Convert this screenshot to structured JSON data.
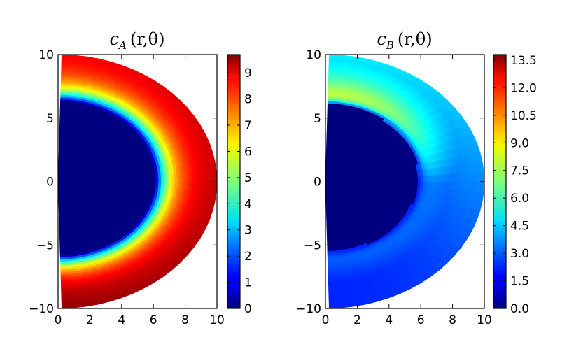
{
  "chart_data": [
    {
      "type": "heatmap",
      "title": "c_A (r,θ)",
      "title_parts": {
        "symbol": "c",
        "subscript": "A",
        "args": "(r,θ)"
      },
      "x_ticks": [
        "0",
        "2",
        "4",
        "6",
        "8",
        "10"
      ],
      "y_ticks": [
        "10",
        "5",
        "0",
        "−5",
        "−10"
      ],
      "xlim": [
        0,
        10
      ],
      "ylim": [
        -10,
        10
      ],
      "colorbar": {
        "colormap": "jet",
        "range": [
          0,
          9.7
        ],
        "ticks": [
          "0",
          "1",
          "2",
          "3",
          "4",
          "5",
          "6",
          "7",
          "8",
          "9"
        ],
        "tick_values": [
          0,
          1,
          2,
          3,
          4,
          5,
          6,
          7,
          8,
          9
        ]
      }
    },
    {
      "type": "heatmap",
      "title": "c_B (r,θ)",
      "title_parts": {
        "symbol": "c",
        "subscript": "B",
        "args": "(r,θ)"
      },
      "x_ticks": [
        "0",
        "2",
        "4",
        "6",
        "8",
        "10"
      ],
      "y_ticks": [
        "10",
        "5",
        "0",
        "−5",
        "−10"
      ],
      "xlim": [
        0,
        10
      ],
      "ylim": [
        -10,
        10
      ],
      "colorbar": {
        "colormap": "jet",
        "range": [
          0,
          13.8
        ],
        "ticks": [
          "0.0",
          "1.5",
          "3.0",
          "4.5",
          "6.0",
          "7.5",
          "9.0",
          "10.5",
          "12.0",
          "13.5"
        ],
        "tick_values": [
          0,
          1.5,
          3,
          4.5,
          6,
          7.5,
          9,
          10.5,
          12,
          13.5
        ]
      }
    }
  ]
}
